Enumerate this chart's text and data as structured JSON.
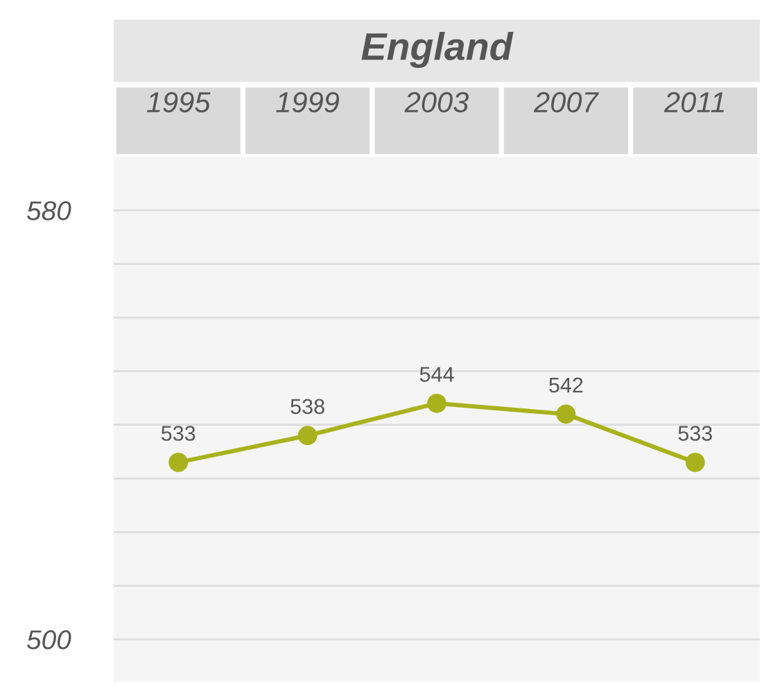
{
  "chart_data": {
    "type": "line",
    "title": "England",
    "categories": [
      "1995",
      "1999",
      "2003",
      "2007",
      "2011"
    ],
    "series": [
      {
        "color": "#a9b21c",
        "values": [
          533,
          538,
          544,
          542,
          533
        ]
      }
    ],
    "ylim": [
      492,
      590
    ],
    "yticks": [
      500,
      {
        "value": 510,
        "label": null
      },
      {
        "value": 520,
        "label": null
      },
      {
        "value": 530,
        "label": null
      },
      {
        "value": 540,
        "label": null
      },
      {
        "value": 550,
        "label": null
      },
      {
        "value": 560,
        "label": null
      },
      {
        "value": 570,
        "label": null
      },
      580
    ],
    "grid": "y",
    "marker": "circle",
    "line_style": "solid",
    "data_labels": true
  }
}
